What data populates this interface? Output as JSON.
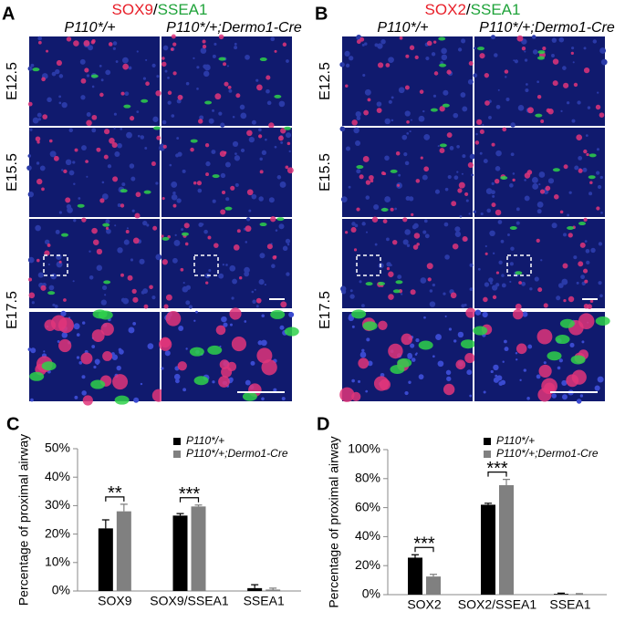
{
  "panels": [
    {
      "label": "A",
      "marker_1": "SOX9",
      "separator": "/",
      "marker_2": "SSEA1",
      "columns": [
        "P110*/+",
        "P110*/+;Dermo1-Cre"
      ],
      "rows": [
        "E12.5",
        "E15.5",
        "E17.5"
      ]
    },
    {
      "label": "B",
      "marker_1": "SOX2",
      "separator": "/",
      "marker_2": "SSEA1",
      "columns": [
        "P110*/+",
        "P110*/+;Dermo1-Cre"
      ],
      "rows": [
        "E12.5",
        "E15.5",
        "E17.5"
      ]
    }
  ],
  "chart_data": [
    {
      "type": "bar",
      "label": "C",
      "ylabel": "Percentage of proximal airway",
      "categories": [
        "SOX9",
        "SOX9/SSEA1",
        "SSEA1"
      ],
      "series": [
        {
          "name": "P110*/+",
          "color": "#000000",
          "values": [
            22,
            26.5,
            1
          ],
          "errors": [
            3,
            0.7,
            1.2
          ]
        },
        {
          "name": "P110*/+;Dermo1-Cre",
          "color": "#808080",
          "values": [
            28,
            29.7,
            0.5
          ],
          "errors": [
            2.5,
            0.5,
            0.5
          ]
        }
      ],
      "significance": [
        "**",
        "***",
        null
      ],
      "ylim": [
        0,
        50
      ],
      "yticks": [
        {
          "value": 0,
          "label": "0%"
        },
        {
          "value": 10,
          "label": "10%"
        },
        {
          "value": 20,
          "label": "20%"
        },
        {
          "value": 30,
          "label": "30%"
        },
        {
          "value": 40,
          "label": "40%"
        },
        {
          "value": 50,
          "label": "50%"
        }
      ]
    },
    {
      "type": "bar",
      "label": "D",
      "ylabel": "Percentage of proximal airway",
      "categories": [
        "SOX2",
        "SOX2/SSEA1",
        "SSEA1"
      ],
      "series": [
        {
          "name": "P110*/+",
          "color": "#000000",
          "values": [
            25.5,
            62,
            0.5
          ],
          "errors": [
            2,
            1,
            0.5
          ]
        },
        {
          "name": "P110*/+;Dermo1-Cre",
          "color": "#808080",
          "values": [
            12.5,
            75.5,
            0.3
          ],
          "errors": [
            1.5,
            4,
            0.4
          ]
        }
      ],
      "significance": [
        "***",
        "***",
        null
      ],
      "ylim": [
        0,
        100
      ],
      "yticks": [
        {
          "value": 0,
          "label": "0%"
        },
        {
          "value": 20,
          "label": "20%"
        },
        {
          "value": 40,
          "label": "40%"
        },
        {
          "value": 60,
          "label": "60%"
        },
        {
          "value": 80,
          "label": "80%"
        },
        {
          "value": 100,
          "label": "100%"
        }
      ]
    }
  ]
}
